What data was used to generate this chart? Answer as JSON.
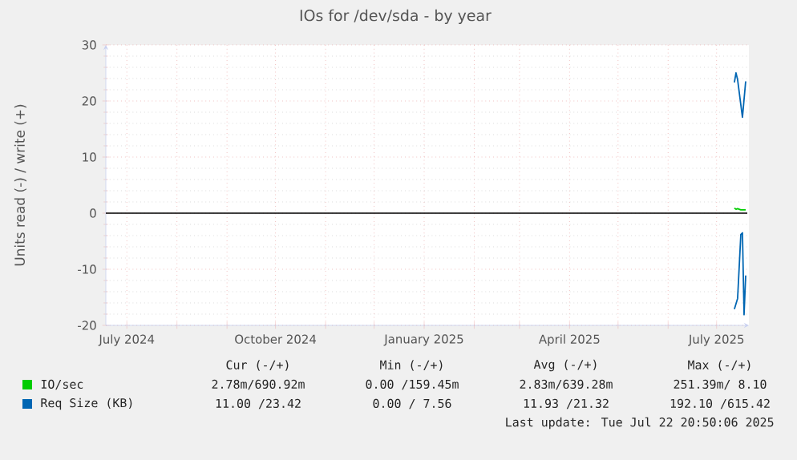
{
  "chart_data": {
    "type": "line",
    "title": "IOs for /dev/sda - by year",
    "ylabel": "Units read (-) / write (+)",
    "xlim": [
      "2024-06-18",
      "2025-07-21"
    ],
    "ylim": [
      -20,
      30
    ],
    "yticks": [
      -20,
      -10,
      0,
      10,
      20,
      30
    ],
    "xticks": [
      {
        "value": "2024-07-01",
        "label": "July 2024"
      },
      {
        "value": "2024-08-01",
        "label": null
      },
      {
        "value": "2024-09-01",
        "label": null
      },
      {
        "value": "2024-10-01",
        "label": "October 2024"
      },
      {
        "value": "2024-11-01",
        "label": null
      },
      {
        "value": "2024-12-01",
        "label": null
      },
      {
        "value": "2025-01-01",
        "label": "January 2025"
      },
      {
        "value": "2025-02-01",
        "label": null
      },
      {
        "value": "2025-03-01",
        "label": null
      },
      {
        "value": "2025-04-01",
        "label": "April 2025"
      },
      {
        "value": "2025-05-01",
        "label": null
      },
      {
        "value": "2025-06-01",
        "label": null
      },
      {
        "value": "2025-07-01",
        "label": "July 2025"
      }
    ],
    "grid": true,
    "legend": "bottom left",
    "ref_lines": [
      {
        "axis": "y",
        "value": 0,
        "color": "#000000"
      }
    ],
    "series": [
      {
        "name": "IO/sec",
        "color": "#00cc00",
        "x": [
          "2025-07-12",
          "2025-07-13",
          "2025-07-14",
          "2025-07-16",
          "2025-07-19"
        ],
        "values": [
          0.9,
          0.7,
          0.8,
          0.6,
          0.6
        ]
      },
      {
        "name": "Req Size (KB)",
        "color": "#0066b3",
        "x": [
          "2025-07-12",
          "2025-07-13",
          "2025-07-14",
          "2025-07-17",
          "2025-07-19"
        ],
        "values": [
          23.3,
          25,
          23.8,
          17.1,
          23.5
        ]
      },
      {
        "color": "#0066b3",
        "x": [
          "2025-07-12",
          "2025-07-14",
          "2025-07-16",
          "2025-07-17",
          "2025-07-18",
          "2025-07-19"
        ],
        "values": [
          -17.1,
          -15.2,
          -3.8,
          -3.5,
          -18.1,
          -11.1
        ]
      }
    ],
    "annotations": [
      "Cur (-/+)",
      "Min (-/+)",
      "Avg (-/+)",
      "Max (-/+)",
      "2.78m/690.92m",
      "0.00 /159.45m",
      "2.83m/639.28m",
      "251.39m/ 8.10",
      "11.00 /23.42",
      "0.00 / 7.56",
      "11.93 /21.32",
      "192.10 /615.42",
      "Last update: Tue Jul 22 20:50:06 2025"
    ]
  }
}
